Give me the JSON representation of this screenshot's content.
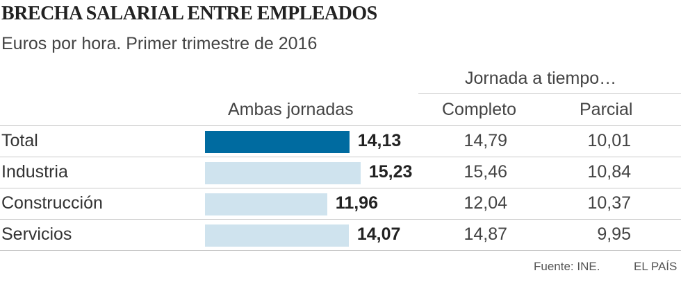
{
  "title": "BRECHA SALARIAL ENTRE EMPLEADOS",
  "subtitle": "Euros por hora. Primer trimestre de 2016",
  "headers": {
    "group": "Jornada a tiempo…",
    "ambas": "Ambas jornadas",
    "completo": "Completo",
    "parcial": "Parcial"
  },
  "rows": [
    {
      "label": "Total",
      "ambas": "14,13",
      "completo": "14,79",
      "parcial": "10,01"
    },
    {
      "label": "Industria",
      "ambas": "15,23",
      "completo": "15,46",
      "parcial": "10,84"
    },
    {
      "label": "Construcción",
      "ambas": "11,96",
      "completo": "12,04",
      "parcial": "10,37"
    },
    {
      "label": "Servicios",
      "ambas": "14,07",
      "completo": "14,87",
      "parcial": "9,95"
    }
  ],
  "footer": {
    "source": "Fuente: INE.",
    "brand": "EL PAÍS"
  },
  "colors": {
    "highlight": "#006ba0",
    "bar": "#cfe3ee"
  },
  "chart_data": {
    "type": "bar",
    "orientation": "horizontal",
    "categories": [
      "Total",
      "Industria",
      "Construcción",
      "Servicios"
    ],
    "values": [
      14.13,
      15.23,
      11.96,
      14.07
    ],
    "highlight_index": 0
  }
}
